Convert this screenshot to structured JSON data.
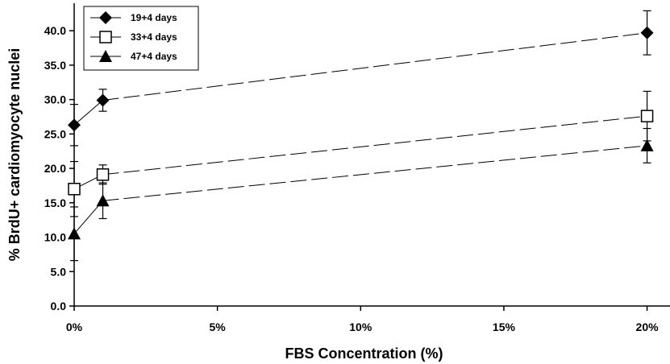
{
  "chart_data": {
    "type": "line",
    "xlabel": "FBS Concentration (%)",
    "ylabel": "% BrdU+ cardiomyocyte nuclei",
    "xlim": [
      0,
      20.8
    ],
    "ylim": [
      0,
      44
    ],
    "x_ticks": [
      0,
      5,
      10,
      15,
      20
    ],
    "x_tick_labels": [
      "0%",
      "5%",
      "10%",
      "15%",
      "20%"
    ],
    "y_ticks": [
      0,
      5,
      10,
      15,
      20,
      25,
      30,
      35,
      40
    ],
    "y_tick_labels": [
      "0.0",
      "5.0",
      "10.0",
      "15.0",
      "20.0",
      "25.0",
      "30.0",
      "35.0",
      "40.0"
    ],
    "grid": false,
    "legend_position": "top-left",
    "x": [
      0,
      1,
      20
    ],
    "series": [
      {
        "name": "19+4 days",
        "marker": "diamond-filled",
        "values": [
          26.3,
          29.9,
          39.7
        ],
        "err": [
          3.0,
          1.6,
          3.2
        ]
      },
      {
        "name": "33+4 days",
        "marker": "square-open",
        "values": [
          17.0,
          19.1,
          27.6
        ],
        "err": [
          4.0,
          1.4,
          3.6
        ]
      },
      {
        "name": "47+4 days",
        "marker": "triangle-filled",
        "values": [
          10.5,
          15.3,
          23.3
        ],
        "err": [
          3.9,
          2.6,
          2.5
        ]
      }
    ]
  }
}
